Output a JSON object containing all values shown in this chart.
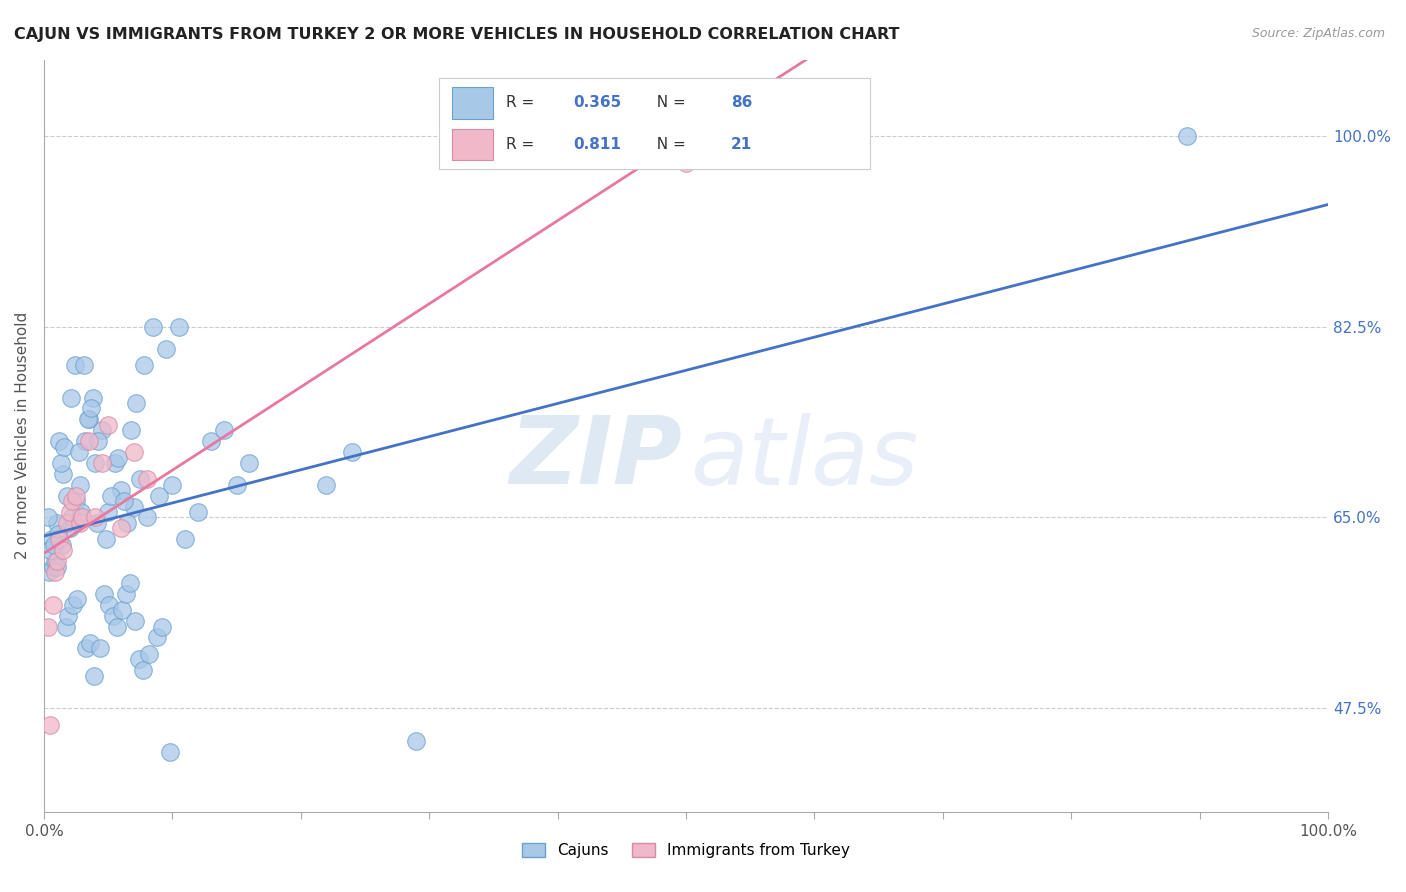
{
  "title": "CAJUN VS IMMIGRANTS FROM TURKEY 2 OR MORE VEHICLES IN HOUSEHOLD CORRELATION CHART",
  "source": "Source: ZipAtlas.com",
  "ylabel": "2 or more Vehicles in Household",
  "yticks": [
    47.5,
    65.0,
    82.5,
    100.0
  ],
  "ytick_labels": [
    "47.5%",
    "65.0%",
    "82.5%",
    "100.0%"
  ],
  "cajun_color": "#a8c8e8",
  "cajun_edge_color": "#6aa0cc",
  "turkey_color": "#f0b8c8",
  "turkey_edge_color": "#d888a8",
  "regression_cajun_color": "#4472c4",
  "regression_turkey_color": "#e878a0",
  "cajun_R": 0.365,
  "cajun_N": 86,
  "turkey_R": 0.811,
  "turkey_N": 21,
  "legend_color": "#4472c4",
  "legend_N_color": "#cc0000",
  "xmin": 0,
  "xmax": 100,
  "ymin": 38.0,
  "ymax": 107.0,
  "cajun_x": [
    0.4,
    0.6,
    1.2,
    1.5,
    1.8,
    2.0,
    2.2,
    2.5,
    2.8,
    3.0,
    3.2,
    3.5,
    3.8,
    4.0,
    4.5,
    5.0,
    5.5,
    6.0,
    6.5,
    7.0,
    7.5,
    8.0,
    9.0,
    10.0,
    11.0,
    12.0,
    13.0,
    14.0,
    15.0,
    16.0,
    1.0,
    1.3,
    1.6,
    2.1,
    2.4,
    2.7,
    3.1,
    3.4,
    3.7,
    4.2,
    4.8,
    5.2,
    5.8,
    6.2,
    6.8,
    7.2,
    7.8,
    8.5,
    9.5,
    10.5,
    0.3,
    0.7,
    0.9,
    1.1,
    1.4,
    1.7,
    1.9,
    2.3,
    2.6,
    2.9,
    3.3,
    3.6,
    3.9,
    4.1,
    4.4,
    4.7,
    5.1,
    5.4,
    5.7,
    6.1,
    6.4,
    6.7,
    7.1,
    7.4,
    7.7,
    8.2,
    8.8,
    9.2,
    9.8,
    22.0,
    24.0,
    29.0,
    89.0,
    0.5,
    0.8,
    1.0
  ],
  "cajun_y": [
    60.0,
    63.0,
    72.0,
    69.0,
    67.0,
    64.0,
    65.0,
    66.5,
    68.0,
    65.0,
    72.0,
    74.0,
    76.0,
    70.0,
    73.0,
    65.5,
    70.0,
    67.5,
    64.5,
    66.0,
    68.5,
    65.0,
    67.0,
    68.0,
    63.0,
    65.5,
    72.0,
    73.0,
    68.0,
    70.0,
    64.5,
    70.0,
    71.5,
    76.0,
    79.0,
    71.0,
    79.0,
    74.0,
    75.0,
    72.0,
    63.0,
    67.0,
    70.5,
    66.5,
    73.0,
    75.5,
    79.0,
    82.5,
    80.5,
    82.5,
    65.0,
    60.5,
    61.0,
    63.5,
    62.5,
    55.0,
    56.0,
    57.0,
    57.5,
    65.5,
    53.0,
    53.5,
    50.5,
    64.5,
    53.0,
    58.0,
    57.0,
    56.0,
    55.0,
    56.5,
    58.0,
    59.0,
    55.5,
    52.0,
    51.0,
    52.5,
    54.0,
    55.0,
    43.5,
    68.0,
    71.0,
    44.5,
    100.0,
    62.0,
    62.5,
    60.5
  ],
  "turkey_x": [
    0.3,
    0.5,
    0.7,
    0.9,
    1.0,
    1.2,
    1.5,
    1.8,
    2.0,
    2.2,
    2.5,
    2.8,
    3.0,
    3.5,
    4.0,
    4.5,
    5.0,
    6.0,
    7.0,
    8.0,
    50.0
  ],
  "turkey_y": [
    55.0,
    46.0,
    57.0,
    60.0,
    61.0,
    63.0,
    62.0,
    64.5,
    65.5,
    66.5,
    67.0,
    64.5,
    65.0,
    72.0,
    65.0,
    70.0,
    73.5,
    64.0,
    71.0,
    68.5,
    97.5
  ],
  "xtick_positions": [
    0,
    10,
    20,
    30,
    40,
    50,
    60,
    70,
    80,
    90,
    100
  ]
}
